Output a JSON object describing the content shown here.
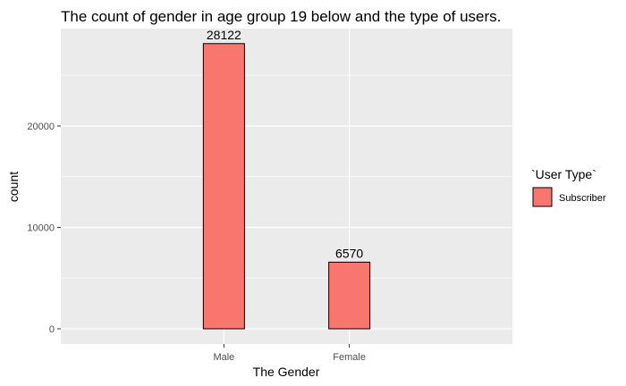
{
  "chart_data": {
    "type": "bar",
    "title": "The count of gender in age group  19 below  and the type of users.",
    "xlabel": "The Gender",
    "ylabel": "count",
    "categories": [
      "Male",
      "Female"
    ],
    "series": [
      {
        "name": "Subscriber",
        "values": [
          28122,
          6570
        ]
      }
    ],
    "data_labels": [
      "28122",
      "6570"
    ],
    "ylim": [
      -1500,
      29600
    ],
    "yticks": [
      0,
      10000,
      20000
    ],
    "yminor": [
      5000,
      15000,
      25000
    ],
    "grid": true,
    "legend": {
      "title": "`User Type`",
      "position": "right"
    }
  },
  "colors": {
    "bar_fill": "#f8766d",
    "bar_stroke": "#000000",
    "panel_bg": "#ebebeb",
    "grid": "#ffffff"
  }
}
